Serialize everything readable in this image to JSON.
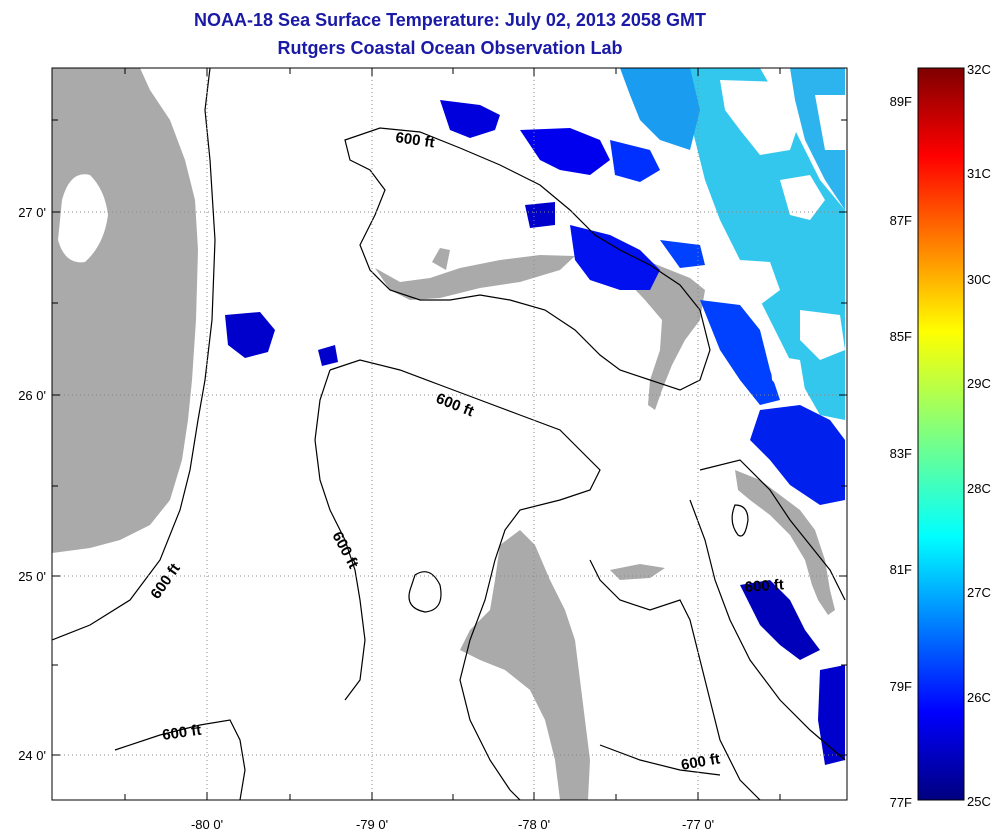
{
  "title_line1": "NOAA-18 Sea Surface Temperature:  July 02, 2013 2058 GMT",
  "title_line2": "Rutgers Coastal Ocean Observation Lab",
  "map": {
    "lon_labels": [
      "-80 0'",
      "-79 0'",
      "-78 0'",
      "-77 0'"
    ],
    "lat_labels": [
      "27 0'",
      "26 0'",
      "25 0'",
      "24 0'"
    ],
    "contour_labels": [
      "600 ft",
      "600 ft",
      "600 ft",
      "600 ft",
      "600 ft",
      "600 ft"
    ],
    "land_color": "#aaaaaa",
    "cloud_color": "#ffffff"
  },
  "colorbar": {
    "celsius_labels": [
      "32C",
      "31C",
      "30C",
      "29C",
      "28C",
      "27C",
      "26C",
      "25C"
    ],
    "fahrenheit_labels": [
      "89F",
      "87F",
      "85F",
      "83F",
      "81F",
      "79F",
      "77F"
    ],
    "colors": [
      "#00007f",
      "#0000ff",
      "#007fff",
      "#00ffff",
      "#7fff7f",
      "#ffff00",
      "#ff7f00",
      "#ff0000",
      "#7f0000"
    ]
  }
}
